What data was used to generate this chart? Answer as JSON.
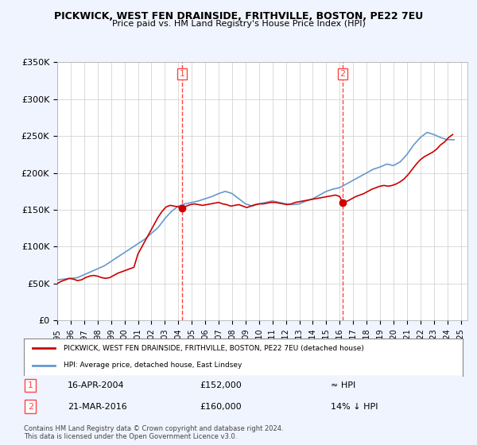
{
  "title": "PICKWICK, WEST FEN DRAINSIDE, FRITHVILLE, BOSTON, PE22 7EU",
  "subtitle": "Price paid vs. HM Land Registry's House Price Index (HPI)",
  "ylim": [
    0,
    350000
  ],
  "yticks": [
    0,
    50000,
    100000,
    150000,
    200000,
    250000,
    300000,
    350000
  ],
  "ytick_labels": [
    "£0",
    "£50K",
    "£100K",
    "£150K",
    "£200K",
    "£250K",
    "£300K",
    "£350K"
  ],
  "xlim_start": 1995.0,
  "xlim_end": 2025.5,
  "sale1_x": 2004.29,
  "sale1_y": 152000,
  "sale1_label": "1",
  "sale1_date": "16-APR-2004",
  "sale1_price": "£152,000",
  "sale1_hpi": "≈ HPI",
  "sale2_x": 2016.22,
  "sale2_y": 160000,
  "sale2_label": "2",
  "sale2_date": "21-MAR-2016",
  "sale2_price": "£160,000",
  "sale2_hpi": "14% ↓ HPI",
  "legend_label_red": "PICKWICK, WEST FEN DRAINSIDE, FRITHVILLE, BOSTON, PE22 7EU (detached house)",
  "legend_label_blue": "HPI: Average price, detached house, East Lindsey",
  "footer": "Contains HM Land Registry data © Crown copyright and database right 2024.\nThis data is licensed under the Open Government Licence v3.0.",
  "bg_color": "#f0f4ff",
  "plot_bg": "#ffffff",
  "red_color": "#cc0000",
  "blue_color": "#6699cc",
  "vline_color": "#ff4444",
  "grid_color": "#cccccc",
  "hpi_x": [
    1995.0,
    1995.5,
    1996.0,
    1996.5,
    1997.0,
    1997.5,
    1998.0,
    1998.5,
    1999.0,
    1999.5,
    2000.0,
    2000.5,
    2001.0,
    2001.5,
    2002.0,
    2002.5,
    2003.0,
    2003.5,
    2004.0,
    2004.5,
    2005.0,
    2005.5,
    2006.0,
    2006.5,
    2007.0,
    2007.5,
    2008.0,
    2008.5,
    2009.0,
    2009.5,
    2010.0,
    2010.5,
    2011.0,
    2011.5,
    2012.0,
    2012.5,
    2013.0,
    2013.5,
    2014.0,
    2014.5,
    2015.0,
    2015.5,
    2016.0,
    2016.5,
    2017.0,
    2017.5,
    2018.0,
    2018.5,
    2019.0,
    2019.5,
    2020.0,
    2020.5,
    2021.0,
    2021.5,
    2022.0,
    2022.5,
    2023.0,
    2023.5,
    2024.0,
    2024.5
  ],
  "hpi_y": [
    55000,
    56000,
    57000,
    58000,
    62000,
    66000,
    70000,
    74000,
    80000,
    86000,
    92000,
    98000,
    104000,
    110000,
    118000,
    126000,
    138000,
    148000,
    155000,
    158000,
    160000,
    162000,
    165000,
    168000,
    172000,
    175000,
    172000,
    165000,
    158000,
    155000,
    158000,
    160000,
    162000,
    160000,
    158000,
    157000,
    158000,
    162000,
    165000,
    170000,
    175000,
    178000,
    180000,
    185000,
    190000,
    195000,
    200000,
    205000,
    208000,
    212000,
    210000,
    215000,
    225000,
    238000,
    248000,
    255000,
    252000,
    248000,
    245000,
    245000
  ],
  "red_x": [
    1995.0,
    1995.3,
    1995.6,
    1995.9,
    1996.2,
    1996.5,
    1996.8,
    1997.1,
    1997.4,
    1997.7,
    1998.0,
    1998.3,
    1998.6,
    1998.9,
    1999.2,
    1999.5,
    1999.8,
    2000.1,
    2000.4,
    2000.7,
    2001.0,
    2001.3,
    2001.6,
    2001.9,
    2002.2,
    2002.5,
    2002.8,
    2003.1,
    2003.4,
    2003.7,
    2004.0,
    2004.29,
    2004.6,
    2004.9,
    2005.2,
    2005.5,
    2005.8,
    2006.1,
    2006.4,
    2006.7,
    2007.0,
    2007.3,
    2007.6,
    2007.9,
    2008.2,
    2008.5,
    2008.8,
    2009.1,
    2009.4,
    2009.7,
    2010.0,
    2010.3,
    2010.6,
    2010.9,
    2011.2,
    2011.5,
    2011.8,
    2012.1,
    2012.4,
    2012.7,
    2013.0,
    2013.3,
    2013.6,
    2013.9,
    2014.2,
    2014.5,
    2014.8,
    2015.1,
    2015.4,
    2015.7,
    2016.0,
    2016.22,
    2016.6,
    2016.9,
    2017.2,
    2017.5,
    2017.8,
    2018.1,
    2018.4,
    2018.7,
    2019.0,
    2019.3,
    2019.6,
    2019.9,
    2020.2,
    2020.5,
    2020.8,
    2021.1,
    2021.4,
    2021.7,
    2022.0,
    2022.3,
    2022.6,
    2022.9,
    2023.2,
    2023.5,
    2023.8,
    2024.1,
    2024.4
  ],
  "red_y": [
    50000,
    53000,
    55000,
    57000,
    56000,
    54000,
    55000,
    58000,
    60000,
    61000,
    60000,
    58000,
    57000,
    58000,
    61000,
    64000,
    66000,
    68000,
    70000,
    72000,
    90000,
    100000,
    110000,
    120000,
    130000,
    140000,
    148000,
    154000,
    156000,
    155000,
    154000,
    152000,
    155000,
    157000,
    158000,
    157000,
    156000,
    157000,
    158000,
    159000,
    160000,
    158000,
    157000,
    155000,
    156000,
    157000,
    155000,
    153000,
    155000,
    157000,
    158000,
    158000,
    159000,
    160000,
    160000,
    159000,
    158000,
    157000,
    158000,
    160000,
    161000,
    162000,
    163000,
    164000,
    165000,
    166000,
    167000,
    168000,
    169000,
    170000,
    168000,
    160000,
    162000,
    165000,
    168000,
    170000,
    172000,
    175000,
    178000,
    180000,
    182000,
    183000,
    182000,
    183000,
    185000,
    188000,
    192000,
    198000,
    205000,
    212000,
    218000,
    222000,
    225000,
    228000,
    232000,
    238000,
    242000,
    248000,
    252000
  ]
}
